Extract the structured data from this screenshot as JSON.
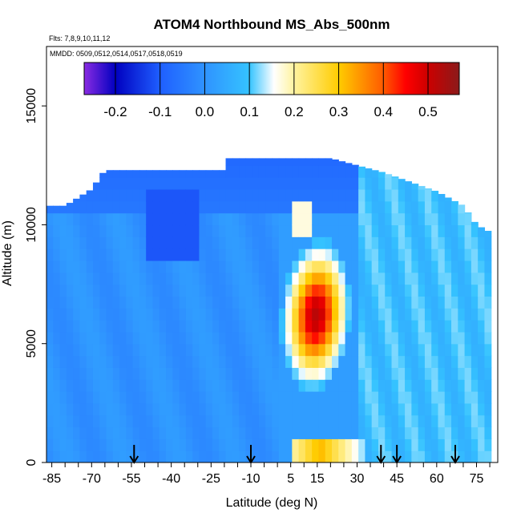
{
  "chart_data": {
    "type": "heatmap",
    "title": "ATOM4 Northbound MS_Abs_500nm",
    "subtitle_flights": "Flts: 7,8,9,10,11,12",
    "subtitle_dates": "MMDD: 0509,0512,0514,0517,0518,0519",
    "xlabel": "Latitude (deg N)",
    "ylabel": "Altitude (m)",
    "xlim": [
      -87,
      83
    ],
    "ylim": [
      0,
      17500
    ],
    "x_ticks": [
      -85,
      -80,
      -75,
      -70,
      -65,
      -60,
      -55,
      -50,
      -45,
      -40,
      -35,
      -30,
      -25,
      -20,
      -15,
      -10,
      -5,
      0,
      5,
      10,
      15,
      20,
      25,
      30,
      35,
      40,
      45,
      50,
      55,
      60,
      65,
      70,
      75,
      80
    ],
    "x_tick_labels": [
      {
        "value": -85,
        "label": "-85"
      },
      {
        "value": -70,
        "label": "-70"
      },
      {
        "value": -55,
        "label": "-55"
      },
      {
        "value": -40,
        "label": "-40"
      },
      {
        "value": -25,
        "label": "-25"
      },
      {
        "value": -10,
        "label": "-10"
      },
      {
        "value": 5,
        "label": "5"
      },
      {
        "value": 15,
        "label": "15"
      },
      {
        "value": 30,
        "label": "30"
      },
      {
        "value": 45,
        "label": "45"
      },
      {
        "value": 60,
        "label": "60"
      },
      {
        "value": 75,
        "label": "75"
      }
    ],
    "y_ticks": [
      {
        "value": 0,
        "label": "0"
      },
      {
        "value": 5000,
        "label": "5000"
      },
      {
        "value": 10000,
        "label": "10000"
      },
      {
        "value": 15000,
        "label": "15000"
      }
    ],
    "colorbar": {
      "range": [
        -0.27,
        0.57
      ],
      "tick_values": [
        -0.2,
        -0.1,
        0.0,
        0.1,
        0.2,
        0.3,
        0.4,
        0.5
      ],
      "tick_labels": [
        "-0.2",
        "-0.1",
        "0.0",
        "0.1",
        "0.2",
        "0.3",
        "0.4",
        "0.5"
      ],
      "stops": [
        {
          "v": -0.27,
          "c": "#8a2be2"
        },
        {
          "v": -0.2,
          "c": "#0000c0"
        },
        {
          "v": -0.1,
          "c": "#1f5fff"
        },
        {
          "v": 0.0,
          "c": "#2f93ff"
        },
        {
          "v": 0.1,
          "c": "#35c3ff"
        },
        {
          "v": 0.155,
          "c": "#ffffff"
        },
        {
          "v": 0.2,
          "c": "#fff3a0"
        },
        {
          "v": 0.3,
          "c": "#ffcc00"
        },
        {
          "v": 0.4,
          "c": "#ff5a00"
        },
        {
          "v": 0.45,
          "c": "#ff0000"
        },
        {
          "v": 0.5,
          "c": "#cc0000"
        },
        {
          "v": 0.57,
          "c": "#8b1a1a"
        }
      ]
    },
    "flight_markers_lat": [
      -54,
      -10,
      39,
      45,
      67
    ],
    "dataset_notes": "Latitude-altitude field; maximum (~0.5) near 10-18 N at 4000-8000 m; near-zero background elsewhere."
  }
}
